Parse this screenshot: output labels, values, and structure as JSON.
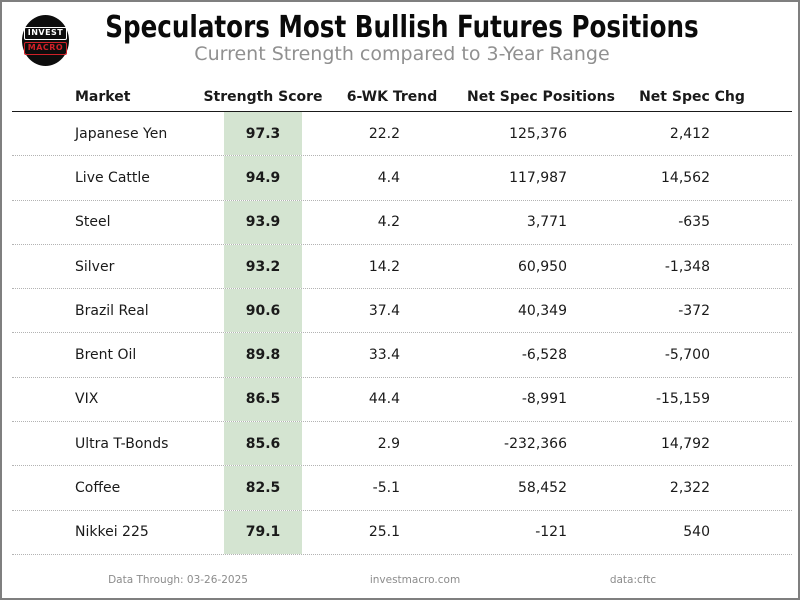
{
  "header": {
    "title": "Speculators Most Bullish Futures Positions",
    "subtitle": "Current Strength compared to 3-Year Range",
    "logo": {
      "line1": "INVEST",
      "line2": "MACRO"
    }
  },
  "table": {
    "columns": {
      "market": "Market",
      "score": "Strength Score",
      "trend": "6-WK Trend",
      "positions": "Net Spec Positions",
      "chg": "Net Spec Chg"
    },
    "score_band_color": "#d4e4d1",
    "rows": [
      {
        "market": "Japanese Yen",
        "score": "97.3",
        "trend": "22.2",
        "positions": "125,376",
        "chg": "2,412"
      },
      {
        "market": "Live Cattle",
        "score": "94.9",
        "trend": "4.4",
        "positions": "117,987",
        "chg": "14,562"
      },
      {
        "market": "Steel",
        "score": "93.9",
        "trend": "4.2",
        "positions": "3,771",
        "chg": "-635"
      },
      {
        "market": "Silver",
        "score": "93.2",
        "trend": "14.2",
        "positions": "60,950",
        "chg": "-1,348"
      },
      {
        "market": "Brazil Real",
        "score": "90.6",
        "trend": "37.4",
        "positions": "40,349",
        "chg": "-372"
      },
      {
        "market": "Brent Oil",
        "score": "89.8",
        "trend": "33.4",
        "positions": "-6,528",
        "chg": "-5,700"
      },
      {
        "market": "VIX",
        "score": "86.5",
        "trend": "44.4",
        "positions": "-8,991",
        "chg": "-15,159"
      },
      {
        "market": "Ultra T-Bonds",
        "score": "85.6",
        "trend": "2.9",
        "positions": "-232,366",
        "chg": "14,792"
      },
      {
        "market": "Coffee",
        "score": "82.5",
        "trend": "-5.1",
        "positions": "58,452",
        "chg": "2,322"
      },
      {
        "market": "Nikkei 225",
        "score": "79.1",
        "trend": "25.1",
        "positions": "-121",
        "chg": "540"
      }
    ]
  },
  "chart_data": {
    "type": "table",
    "title": "Speculators Most Bullish Futures Positions",
    "subtitle": "Current Strength compared to 3-Year Range",
    "columns": [
      "Market",
      "Strength Score",
      "6-WK Trend",
      "Net Spec Positions",
      "Net Spec Chg"
    ],
    "rows": [
      [
        "Japanese Yen",
        97.3,
        22.2,
        125376,
        2412
      ],
      [
        "Live Cattle",
        94.9,
        4.4,
        117987,
        14562
      ],
      [
        "Steel",
        93.9,
        4.2,
        3771,
        -635
      ],
      [
        "Silver",
        93.2,
        14.2,
        60950,
        -1348
      ],
      [
        "Brazil Real",
        90.6,
        37.4,
        40349,
        -372
      ],
      [
        "Brent Oil",
        89.8,
        33.4,
        -6528,
        -5700
      ],
      [
        "VIX",
        86.5,
        44.4,
        -8991,
        -15159
      ],
      [
        "Ultra T-Bonds",
        85.6,
        2.9,
        -232366,
        14792
      ],
      [
        "Coffee",
        82.5,
        -5.1,
        58452,
        2322
      ],
      [
        "Nikkei 225",
        79.1,
        25.1,
        -121,
        540
      ]
    ],
    "layout": {
      "score_column_highlight": "#d4e4d1",
      "row_separator": "dotted",
      "header_rule": "solid"
    }
  },
  "footer": {
    "data_through": "Data Through: 03-26-2025",
    "site": "investmacro.com",
    "source": "data:cftc"
  }
}
